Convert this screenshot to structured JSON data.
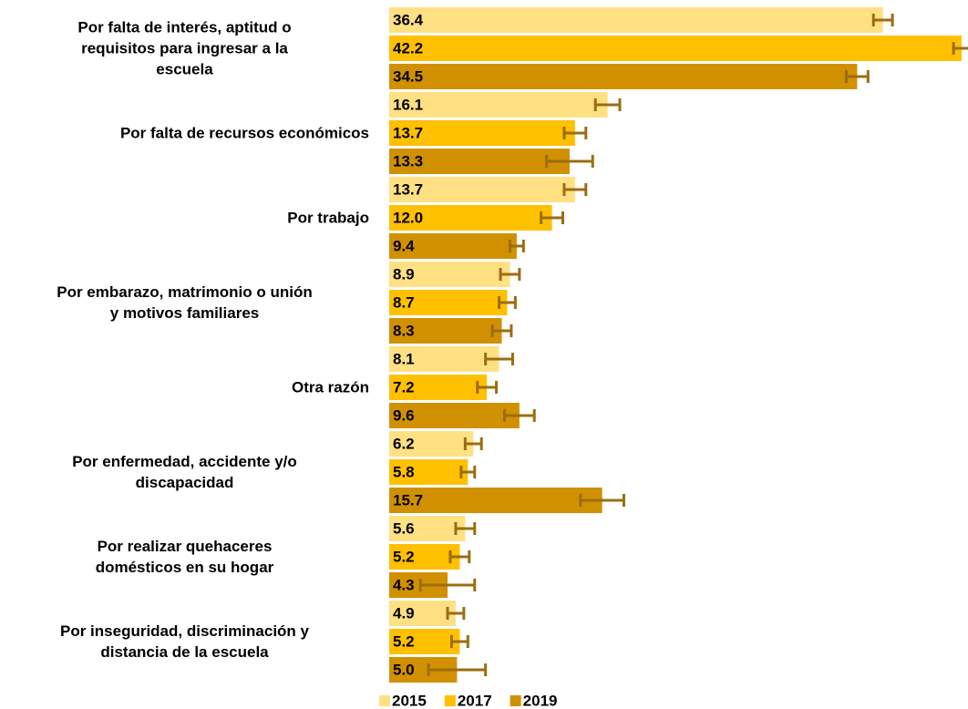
{
  "chart_data": {
    "type": "bar",
    "orientation": "horizontal",
    "categories": [
      "Por falta de interés, aptitud o\nrequisitos para ingresar a la\nescuela",
      "Por falta de recursos económicos",
      "Por trabajo",
      "Por embarazo, matrimonio o unión\ny motivos familiares",
      "Otra razón",
      "Por enfermedad, accidente y/o\ndiscapacidad",
      "Por realizar quehaceres\ndomésticos en su hogar",
      "Por inseguridad, discriminación y\ndistancia de la escuela"
    ],
    "series": [
      {
        "name": "2015",
        "color": "#ffe083",
        "values": [
          36.4,
          16.1,
          13.7,
          8.9,
          8.1,
          6.2,
          5.6,
          4.9
        ],
        "value_labels": [
          "36.4",
          "16.1",
          "13.7",
          "8.9",
          "8.1",
          "6.2",
          "5.6",
          "4.9"
        ],
        "errors": [
          0.7,
          0.9,
          0.8,
          0.7,
          1.0,
          0.6,
          0.7,
          0.6
        ]
      },
      {
        "name": "2017",
        "color": "#ffc000",
        "values": [
          42.2,
          13.7,
          12.0,
          8.7,
          7.2,
          5.8,
          5.2,
          5.2
        ],
        "value_labels": [
          "42.2",
          "13.7",
          "12.0",
          "8.7",
          "7.2",
          "5.8",
          "5.2",
          "5.2"
        ],
        "errors": [
          0.6,
          0.8,
          0.8,
          0.6,
          0.7,
          0.5,
          0.7,
          0.6
        ]
      },
      {
        "name": "2019",
        "color": "#d09000",
        "values": [
          34.5,
          13.3,
          9.4,
          8.3,
          9.6,
          15.7,
          4.3,
          5.0
        ],
        "value_labels": [
          "34.5",
          "13.3",
          "9.4",
          "8.3",
          "9.6",
          "15.7",
          "4.3",
          "5.0"
        ],
        "errors": [
          0.8,
          1.7,
          0.5,
          0.7,
          1.1,
          1.6,
          2.0,
          2.1
        ]
      }
    ],
    "error_color": "#9c6d10",
    "xlim": [
      0,
      42.2
    ],
    "legend": "bottom"
  }
}
